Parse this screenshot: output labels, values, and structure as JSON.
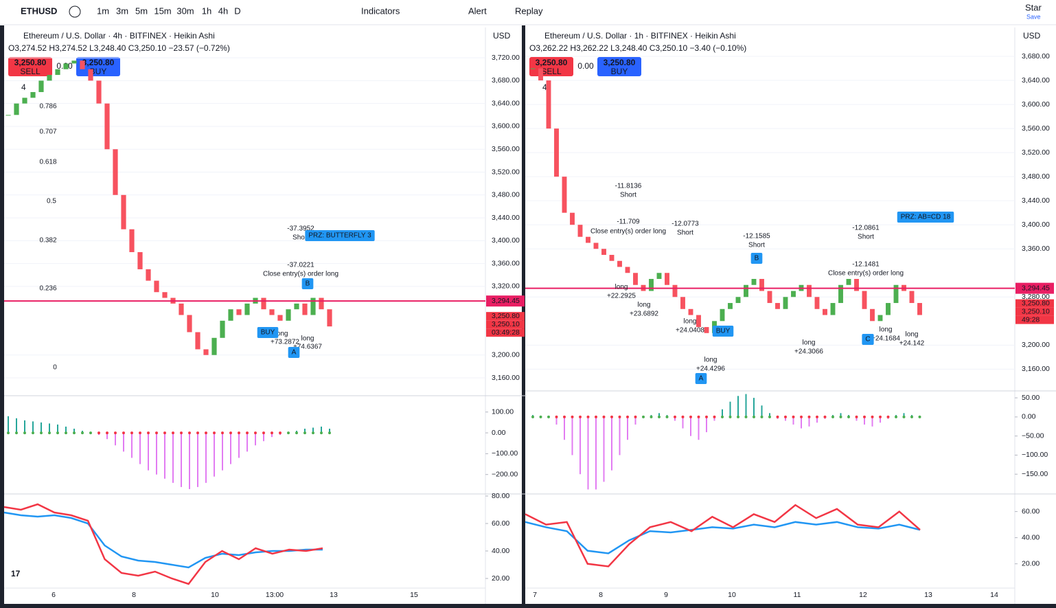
{
  "toolbar": {
    "symbol": "ETHUSD",
    "intervals": [
      "1m",
      "3m",
      "5m",
      "15m",
      "30m",
      "1h",
      "4h",
      "D"
    ],
    "indicators": "Indicators",
    "alert": "Alert",
    "replay": "Replay",
    "star": "Star",
    "save": "Save"
  },
  "panes": [
    {
      "title": "Ethereum / U.S. Dollar · 4h · BITFINEX · Heikin Ashi",
      "ohlc": "O3,274.52 H3,274.52 L3,248.40 C3,250.10 −23.57 (−0.72%)",
      "sell": {
        "price": "3,250.80",
        "label": "SELL"
      },
      "spread": "0.00",
      "buy": {
        "price": "3,250.80",
        "label": "BUY"
      },
      "badge": "4",
      "currency": "USD",
      "price": {
        "ylim": [
          3130,
          3773
        ],
        "yticks": [
          {
            "value": 3720,
            "label": "3,720.00"
          },
          {
            "value": 3680,
            "label": "3,680.00"
          },
          {
            "value": 3640,
            "label": "3,640.00"
          },
          {
            "value": 3600,
            "label": "3,600.00"
          },
          {
            "value": 3560,
            "label": "3,560.00"
          },
          {
            "value": 3520,
            "label": "3,520.00"
          },
          {
            "value": 3480,
            "label": "3,480.00"
          },
          {
            "value": 3440,
            "label": "3,440.00"
          },
          {
            "value": 3400,
            "label": "3,400.00"
          },
          {
            "value": 3360,
            "label": "3,360.00"
          },
          {
            "value": 3320,
            "label": "3,320.00"
          },
          {
            "value": 3200,
            "label": "3,200.00"
          },
          {
            "value": 3160,
            "label": "3,160.00"
          }
        ]
      },
      "candles": [
        3620,
        3640,
        3650,
        3660,
        3680,
        3690,
        3700,
        3710,
        3715,
        3700,
        3680,
        3640,
        3560,
        3480,
        3420,
        3380,
        3350,
        3330,
        3310,
        3300,
        3290,
        3270,
        3240,
        3210,
        3200,
        3230,
        3260,
        3280,
        3270,
        3290,
        3300,
        3280,
        3270,
        3260,
        3280,
        3290,
        3270,
        3300,
        3280,
        3250
      ],
      "level": {
        "value": 3294.45,
        "label": "3,294.45"
      },
      "badges": [
        "3,250.80",
        "3,250.10",
        "03:49:28"
      ],
      "annotations": [
        "0.786",
        "0.707",
        "0.618",
        "0.5",
        "0.382",
        "0.236",
        "0",
        "-37.3952",
        "Short",
        "PRZ: BUTTERFLY 3",
        "-37.0221",
        "Close entry(s) order long",
        "long",
        "+73.2872",
        "long",
        "+74.6367",
        "BUY",
        "A",
        "B"
      ],
      "osc": {
        "ylim": [
          -290,
          175
        ],
        "yticks": [
          {
            "value": 100,
            "label": "100.00"
          },
          {
            "value": 0,
            "label": "0.00"
          },
          {
            "value": -100,
            "label": "−100.00"
          },
          {
            "value": -200,
            "label": "−200.00"
          }
        ],
        "values": [
          80,
          70,
          60,
          55,
          50,
          45,
          40,
          30,
          20,
          10,
          0,
          -10,
          -30,
          -60,
          -90,
          -120,
          -150,
          -180,
          -200,
          -220,
          -240,
          -260,
          -270,
          -260,
          -240,
          -210,
          -180,
          -150,
          -120,
          -90,
          -60,
          -40,
          -20,
          -10,
          0,
          10,
          20,
          25,
          30,
          20
        ]
      },
      "rsi": {
        "ylim": [
          14.5,
          81
        ],
        "yticks": [
          {
            "value": 80,
            "label": "80.00"
          },
          {
            "value": 60,
            "label": "60.00"
          },
          {
            "value": 40,
            "label": "40.00"
          },
          {
            "value": 20,
            "label": "20.00"
          }
        ],
        "series": [
          {
            "color": "#2196f3",
            "values": [
              68,
              66,
              65,
              66,
              64,
              60,
              44,
              36,
              33,
              32,
              30,
              28,
              35,
              38,
              37,
              39,
              40,
              40,
              41,
              41
            ]
          },
          {
            "color": "#f23645",
            "values": [
              72,
              70,
              74,
              68,
              66,
              62,
              34,
              24,
              22,
              25,
              20,
              16,
              32,
              40,
              34,
              42,
              38,
              41,
              40,
              42
            ]
          }
        ]
      },
      "time_labels": [
        "6",
        "8",
        "10",
        "13:00",
        "13",
        "15"
      ]
    },
    {
      "title": "Ethereum / U.S. Dollar · 1h · BITFINEX · Heikin Ashi",
      "ohlc": "O3,262.22 H3,262.22 L3,248.40 C3,250.10 −3.40 (−0.10%)",
      "sell": {
        "price": "3,250.80",
        "label": "SELL"
      },
      "spread": "0.00",
      "buy": {
        "price": "3,250.80",
        "label": "BUY"
      },
      "badge": "4",
      "currency": "USD",
      "price": {
        "ylim": [
          3125,
          3728
        ],
        "yticks": [
          {
            "value": 3680,
            "label": "3,680.00"
          },
          {
            "value": 3640,
            "label": "3,640.00"
          },
          {
            "value": 3600,
            "label": "3,600.00"
          },
          {
            "value": 3560,
            "label": "3,560.00"
          },
          {
            "value": 3520,
            "label": "3,520.00"
          },
          {
            "value": 3480,
            "label": "3,480.00"
          },
          {
            "value": 3440,
            "label": "3,440.00"
          },
          {
            "value": 3400,
            "label": "3,400.00"
          },
          {
            "value": 3360,
            "label": "3,360.00"
          },
          {
            "value": 3280,
            "label": "3,280.00"
          },
          {
            "value": 3200,
            "label": "3,200.00"
          },
          {
            "value": 3160,
            "label": "3,160.00"
          }
        ]
      },
      "candles": [
        3660,
        3640,
        3560,
        3480,
        3420,
        3400,
        3380,
        3370,
        3360,
        3350,
        3340,
        3330,
        3320,
        3300,
        3290,
        3310,
        3320,
        3300,
        3280,
        3260,
        3250,
        3230,
        3220,
        3240,
        3260,
        3270,
        3280,
        3300,
        3310,
        3290,
        3270,
        3260,
        3280,
        3290,
        3300,
        3280,
        3260,
        3250,
        3270,
        3300,
        3310,
        3290,
        3260,
        3240,
        3250,
        3270,
        3300,
        3290,
        3270,
        3250
      ],
      "level": {
        "value": 3294.45,
        "label": "3,294.45"
      },
      "badges": [
        "3,250.80",
        "3,250.10",
        "49:28"
      ],
      "annotations": [
        "-11.8136",
        "Short",
        "-11.709",
        "Close entry(s) order long",
        "-12.0773",
        "Short",
        "-12.1585",
        "Short",
        "-12.0861",
        "Short",
        "PRZ: AB=CD 18",
        "-12.1481",
        "Close entry(s) order long",
        "long",
        "+22.2925",
        "long",
        "+23.6892",
        "long",
        "+24.0408",
        "long",
        "+24.4296",
        "long",
        "+24.3066",
        "long",
        "+24.1684",
        "long",
        "+24.142",
        "A",
        "B",
        "C",
        "BUY"
      ],
      "osc": {
        "ylim": [
          -200,
          70
        ],
        "yticks": [
          {
            "value": 50,
            "label": "50.00"
          },
          {
            "value": 0,
            "label": "0.00"
          },
          {
            "value": -50,
            "label": "−50.00"
          },
          {
            "value": -100,
            "label": "−100.00"
          },
          {
            "value": -150,
            "label": "−150.00"
          }
        ],
        "values": [
          5,
          3,
          0,
          -20,
          -60,
          -100,
          -150,
          -190,
          -190,
          -170,
          -140,
          -100,
          -60,
          -20,
          0,
          5,
          10,
          5,
          -10,
          -30,
          -50,
          -60,
          -40,
          -10,
          20,
          40,
          55,
          60,
          50,
          30,
          10,
          -5,
          -10,
          -20,
          -30,
          -25,
          -15,
          -5,
          5,
          10,
          5,
          -10,
          -20,
          -25,
          -15,
          -5,
          5,
          10,
          5,
          0
        ]
      },
      "rsi": {
        "ylim": [
          3,
          74
        ],
        "yticks": [
          {
            "value": 60,
            "label": "60.00"
          },
          {
            "value": 40,
            "label": "40.00"
          },
          {
            "value": 20,
            "label": "20.00"
          }
        ],
        "series": [
          {
            "color": "#2196f3",
            "values": [
              52,
              48,
              45,
              30,
              28,
              38,
              45,
              44,
              46,
              48,
              47,
              50,
              48,
              52,
              50,
              52,
              48,
              47,
              50,
              46
            ]
          },
          {
            "color": "#f23645",
            "values": [
              58,
              50,
              52,
              20,
              18,
              35,
              48,
              52,
              45,
              56,
              48,
              58,
              52,
              65,
              55,
              62,
              50,
              48,
              60,
              46
            ]
          }
        ]
      },
      "time_labels": [
        "7",
        "8",
        "9",
        "10",
        "11",
        "12",
        "13",
        "14"
      ]
    }
  ]
}
